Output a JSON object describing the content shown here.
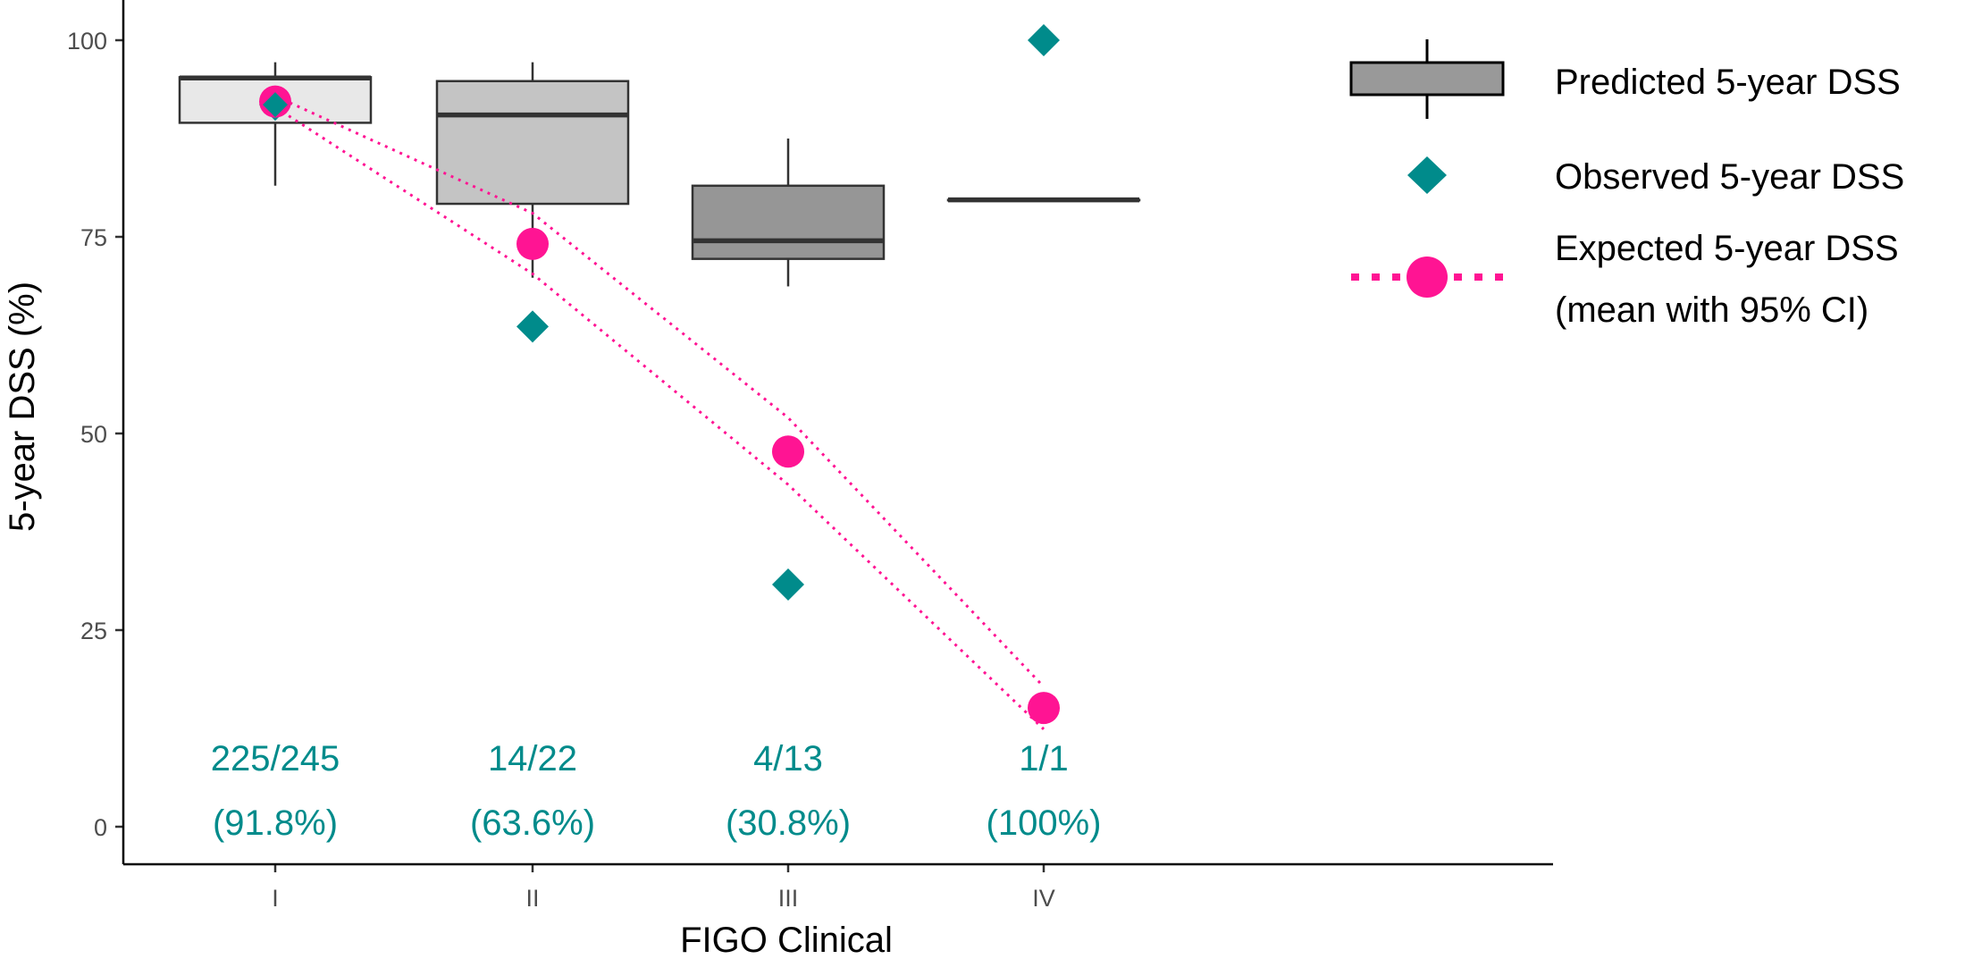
{
  "chart_data": {
    "type": "box",
    "title": "",
    "xlabel": "FIGO Clinical",
    "ylabel": "5-year DSS (%)",
    "ylim": [
      -4.5,
      105
    ],
    "yticks": [
      0,
      25,
      50,
      75,
      100
    ],
    "categories": [
      "I",
      "II",
      "III",
      "IV"
    ],
    "colors": {
      "observed": "#008b8b",
      "expected": "#ff1493",
      "box_outline": "#333333"
    },
    "predicted_box": [
      {
        "category": "I",
        "whisker_low": 81.5,
        "q1": 89.5,
        "median": 95.2,
        "q3": 95.3,
        "whisker_high": 97.2,
        "fill": "#e8e8e8"
      },
      {
        "category": "II",
        "whisker_low": 69.8,
        "q1": 79.2,
        "median": 90.5,
        "q3": 94.8,
        "whisker_high": 97.2,
        "fill": "#c4c4c4"
      },
      {
        "category": "III",
        "whisker_low": 68.7,
        "q1": 72.2,
        "median": 74.5,
        "q3": 81.5,
        "whisker_high": 87.5,
        "fill": "#969696"
      },
      {
        "category": "IV",
        "whisker_low": 79.7,
        "q1": 79.7,
        "median": 79.7,
        "q3": 79.7,
        "whisker_high": 79.7,
        "fill": "#707070"
      }
    ],
    "observed": [
      {
        "category": "I",
        "value": 91.8
      },
      {
        "category": "II",
        "value": 63.6
      },
      {
        "category": "III",
        "value": 30.8
      },
      {
        "category": "IV",
        "value": 100
      }
    ],
    "expected": [
      {
        "category": "I",
        "mean": 92.2
      },
      {
        "category": "II",
        "mean": 74.1
      },
      {
        "category": "III",
        "mean": 47.7
      },
      {
        "category": "IV",
        "mean": 15.1
      }
    ],
    "expected_ci_lower": [
      91.5,
      70.3,
      43.5,
      12.4
    ],
    "expected_ci_upper": [
      92.9,
      78.0,
      52.0,
      17.8
    ],
    "annotations": [
      {
        "category": "I",
        "count": "225/245",
        "pct": "(91.8%)"
      },
      {
        "category": "II",
        "count": "14/22",
        "pct": "(63.6%)"
      },
      {
        "category": "III",
        "count": "4/13",
        "pct": "(30.8%)"
      },
      {
        "category": "IV",
        "count": "1/1",
        "pct": "(100%)"
      }
    ],
    "legend": {
      "position": "right",
      "predicted": "Predicted 5-year DSS",
      "observed": "Observed 5-year DSS",
      "expected_line1": "Expected 5-year DSS",
      "expected_line2": "(mean with 95% CI)"
    }
  }
}
